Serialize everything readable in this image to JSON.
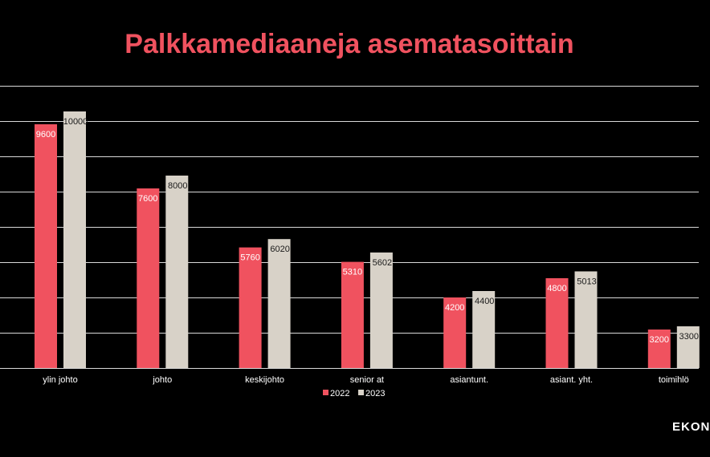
{
  "colors": {
    "background": "#000000",
    "title": "#f0525f",
    "series_2022": "#f0525f",
    "series_2023": "#d8d2c8",
    "gridline": "#d9d9d9",
    "label_on_2022": "#ffffff",
    "label_on_2023": "#1a1a1a",
    "axis_text": "#ffffff"
  },
  "watermark": "EKON",
  "chart_data": {
    "type": "bar",
    "title": "Palkkamediaaneja asematasoittain",
    "xlabel": "",
    "ylabel": "",
    "categories": [
      "ylin johto",
      "johto",
      "keskijohto",
      "senior at",
      "asiantunt.",
      "asiant. yht.",
      "toimihlö"
    ],
    "series": [
      {
        "name": "2022",
        "values": [
          9600,
          7600,
          5760,
          5310,
          4200,
          4800,
          3200
        ]
      },
      {
        "name": "2023",
        "values": [
          10000,
          8000,
          6020,
          5602,
          4400,
          5013,
          3300
        ]
      }
    ],
    "ylim": [
      2000,
      10800
    ],
    "grid": true,
    "legend": "bottom-center"
  }
}
